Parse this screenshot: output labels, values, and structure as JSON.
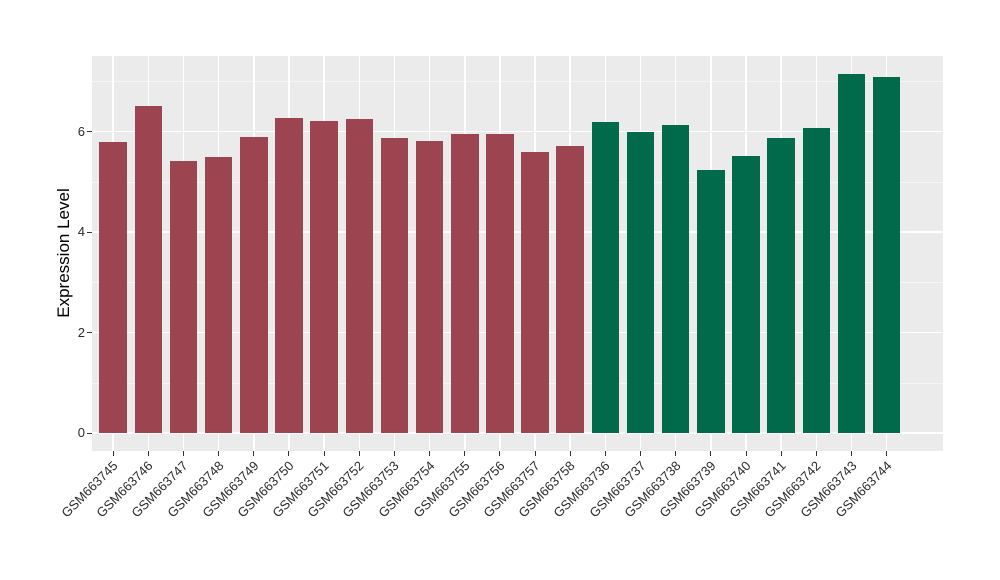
{
  "chart_data": {
    "type": "bar",
    "title": "",
    "ylabel": "Expression Level",
    "xlabel": "",
    "y_ticks": [
      0,
      2,
      4,
      6
    ],
    "y_minor_ticks": [
      1,
      3,
      5,
      7
    ],
    "ylim": [
      -0.37,
      7.5
    ],
    "grid": true,
    "legend_position": "none",
    "group_colors": {
      "red": "#9C4450",
      "green": "#006A4A"
    },
    "bars": [
      {
        "label": "GSM663745",
        "value": 5.8,
        "group": "red"
      },
      {
        "label": "GSM663746",
        "value": 6.51,
        "group": "red"
      },
      {
        "label": "GSM663747",
        "value": 5.42,
        "group": "red"
      },
      {
        "label": "GSM663748",
        "value": 5.5,
        "group": "red"
      },
      {
        "label": "GSM663749",
        "value": 5.9,
        "group": "red"
      },
      {
        "label": "GSM663750",
        "value": 6.27,
        "group": "red"
      },
      {
        "label": "GSM663751",
        "value": 6.2,
        "group": "red"
      },
      {
        "label": "GSM663752",
        "value": 6.24,
        "group": "red"
      },
      {
        "label": "GSM663753",
        "value": 5.88,
        "group": "red"
      },
      {
        "label": "GSM663754",
        "value": 5.81,
        "group": "red"
      },
      {
        "label": "GSM663755",
        "value": 5.95,
        "group": "red"
      },
      {
        "label": "GSM663756",
        "value": 5.96,
        "group": "red"
      },
      {
        "label": "GSM663757",
        "value": 5.6,
        "group": "red"
      },
      {
        "label": "GSM663758",
        "value": 5.72,
        "group": "red"
      },
      {
        "label": "GSM663736",
        "value": 6.19,
        "group": "green"
      },
      {
        "label": "GSM663737",
        "value": 6.0,
        "group": "green"
      },
      {
        "label": "GSM663738",
        "value": 6.13,
        "group": "green"
      },
      {
        "label": "GSM663739",
        "value": 5.23,
        "group": "green"
      },
      {
        "label": "GSM663740",
        "value": 5.51,
        "group": "green"
      },
      {
        "label": "GSM663741",
        "value": 5.88,
        "group": "green"
      },
      {
        "label": "GSM663742",
        "value": 6.07,
        "group": "green"
      },
      {
        "label": "GSM663743",
        "value": 7.14,
        "group": "green"
      },
      {
        "label": "GSM663744",
        "value": 7.08,
        "group": "green"
      }
    ]
  },
  "colors": {
    "page_bg": "#FFFFFF",
    "panel_bg": "#EBEBEB",
    "grid": "#FFFFFF",
    "tick_mark": "#333333",
    "tick_text": "#2B2B2B",
    "axis_title": "#000000"
  }
}
